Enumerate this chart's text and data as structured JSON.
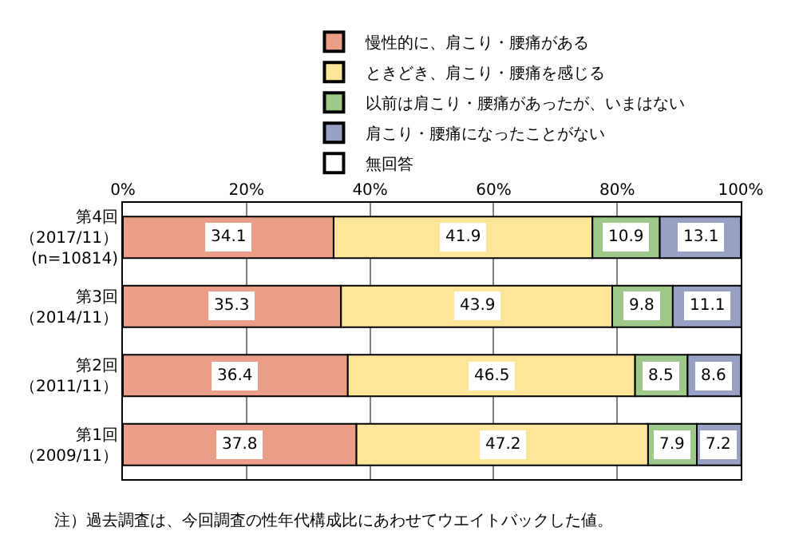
{
  "chart_data": {
    "type": "bar",
    "orientation": "horizontal",
    "stacked": true,
    "categories": [
      "第4回（2017/11）(n=10814)",
      "第3回（2014/11）",
      "第2回（2011/11）",
      "第1回（2009/11）"
    ],
    "series": [
      {
        "name": "慢性的に、肩こり・腰痛がある",
        "color": "#ec9f88",
        "values": [
          34.1,
          35.3,
          36.4,
          37.8
        ]
      },
      {
        "name": "ときどき、肩こり・腰痛を感じる",
        "color": "#fde699",
        "values": [
          41.9,
          43.9,
          46.5,
          47.2
        ]
      },
      {
        "name": "以前は肩こり・腰痛があったが、いまはない",
        "color": "#9ec98a",
        "values": [
          10.9,
          9.8,
          8.5,
          7.9
        ]
      },
      {
        "name": "肩こり・腰痛になったことがない",
        "color": "#98a0c6",
        "values": [
          13.1,
          11.1,
          8.6,
          7.2
        ]
      },
      {
        "name": "無回答",
        "color": "#ffffff",
        "values": [
          null,
          null,
          null,
          null
        ]
      }
    ],
    "xlim": [
      0,
      100
    ],
    "xticks": [
      {
        "value": 0,
        "label": "0%"
      },
      {
        "value": 20,
        "label": "20%"
      },
      {
        "value": 40,
        "label": "40%"
      },
      {
        "value": 60,
        "label": "60%"
      },
      {
        "value": 80,
        "label": "80%"
      },
      {
        "value": 100,
        "label": "100%"
      }
    ],
    "data_labels": true,
    "grid": "x",
    "legend": "top",
    "annotations": [
      "注）過去調査は、今回調査の性年代構成比にあわせてウエイトバックした値。"
    ]
  }
}
